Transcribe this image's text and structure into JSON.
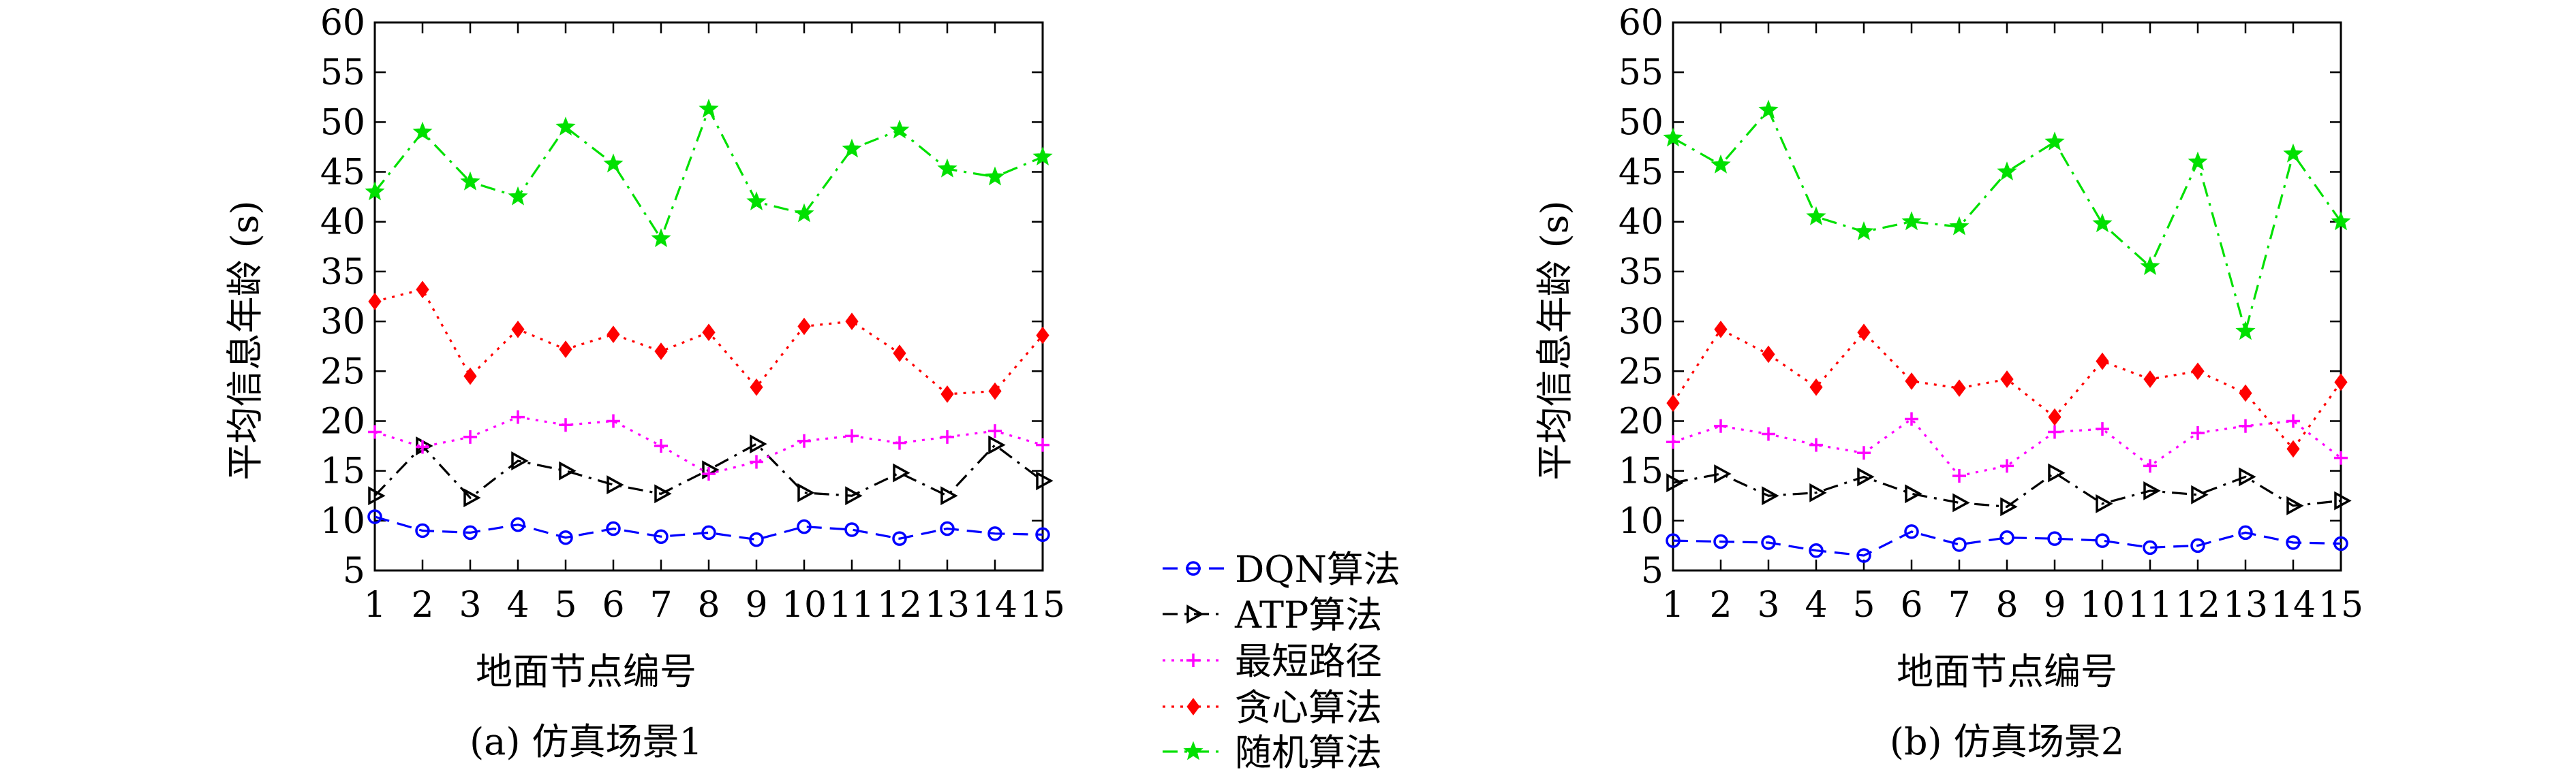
{
  "legend": {
    "placement": "center-between-charts",
    "items": [
      {
        "name": "DQN算法",
        "color": "#0000ff",
        "dash": "dashed",
        "marker": "circle"
      },
      {
        "name": "ATP算法",
        "color": "#000000",
        "dash": "dashdot",
        "marker": "triangle"
      },
      {
        "name": "最短路径",
        "color": "#ff00ff",
        "dash": "dotted",
        "marker": "plus"
      },
      {
        "name": "贪心算法",
        "color": "#ff0000",
        "dash": "dotted",
        "marker": "diamond"
      },
      {
        "name": "随机算法",
        "color": "#00e000",
        "dash": "dashdot",
        "marker": "star"
      }
    ]
  },
  "chart_data": [
    {
      "type": "line",
      "title": "",
      "caption": "(a) 仿真场景1",
      "xlabel": "地面节点编号",
      "ylabel": "平均信息年龄 (s)",
      "x": [
        1,
        2,
        3,
        4,
        5,
        6,
        7,
        8,
        9,
        10,
        11,
        12,
        13,
        14,
        15
      ],
      "xlim": [
        1,
        15
      ],
      "ylim": [
        5,
        60
      ],
      "yticks": [
        5,
        10,
        15,
        20,
        25,
        30,
        35,
        40,
        45,
        50,
        55,
        60
      ],
      "grid": false,
      "series": [
        {
          "name": "DQN算法",
          "values": [
            10.4,
            9.0,
            8.8,
            9.6,
            8.3,
            9.2,
            8.4,
            8.8,
            8.1,
            9.4,
            9.1,
            8.2,
            9.2,
            8.7,
            8.6
          ]
        },
        {
          "name": "ATP算法",
          "values": [
            12.5,
            17.5,
            12.3,
            16.0,
            15.0,
            13.6,
            12.7,
            15.1,
            17.7,
            12.8,
            12.5,
            14.8,
            12.5,
            17.6,
            14.0
          ]
        },
        {
          "name": "最短路径",
          "values": [
            18.9,
            17.4,
            18.4,
            20.4,
            19.6,
            20.0,
            17.5,
            14.7,
            15.9,
            18.0,
            18.5,
            17.8,
            18.4,
            19.0,
            17.6
          ]
        },
        {
          "name": "贪心算法",
          "values": [
            32.0,
            33.2,
            24.5,
            29.2,
            27.2,
            28.7,
            27.0,
            28.9,
            23.4,
            29.5,
            30.0,
            26.8,
            22.7,
            23.0,
            28.6
          ]
        },
        {
          "name": "随机算法",
          "values": [
            43.0,
            49.0,
            44.0,
            42.5,
            49.5,
            45.8,
            38.3,
            51.3,
            42.0,
            40.8,
            47.3,
            49.2,
            45.3,
            44.5,
            46.5
          ]
        }
      ]
    },
    {
      "type": "line",
      "title": "",
      "caption": "(b) 仿真场景2",
      "xlabel": "地面节点编号",
      "ylabel": "平均信息年龄 (s)",
      "x": [
        1,
        2,
        3,
        4,
        5,
        6,
        7,
        8,
        9,
        10,
        11,
        12,
        13,
        14,
        15
      ],
      "xlim": [
        1,
        15
      ],
      "ylim": [
        5,
        60
      ],
      "yticks": [
        5,
        10,
        15,
        20,
        25,
        30,
        35,
        40,
        45,
        50,
        55,
        60
      ],
      "grid": false,
      "series": [
        {
          "name": "DQN算法",
          "values": [
            8.0,
            7.9,
            7.8,
            7.0,
            6.5,
            8.9,
            7.6,
            8.3,
            8.2,
            8.0,
            7.3,
            7.5,
            8.8,
            7.8,
            7.7
          ]
        },
        {
          "name": "ATP算法",
          "values": [
            13.8,
            14.7,
            12.5,
            12.8,
            14.4,
            12.7,
            11.8,
            11.4,
            14.8,
            11.7,
            13.0,
            12.6,
            14.4,
            11.5,
            12.0
          ]
        },
        {
          "name": "最短路径",
          "values": [
            17.9,
            19.5,
            18.7,
            17.6,
            16.8,
            20.2,
            14.5,
            15.5,
            18.9,
            19.2,
            15.5,
            18.8,
            19.5,
            20.0,
            16.3
          ]
        },
        {
          "name": "贪心算法",
          "values": [
            21.8,
            29.2,
            26.7,
            23.4,
            28.9,
            24.0,
            23.3,
            24.2,
            20.4,
            26.0,
            24.2,
            25.0,
            22.8,
            17.2,
            23.9
          ]
        },
        {
          "name": "随机算法",
          "values": [
            48.4,
            45.7,
            51.2,
            40.5,
            39.0,
            40.0,
            39.5,
            45.0,
            48.0,
            39.8,
            35.5,
            46.0,
            29.0,
            46.8,
            40.0
          ]
        }
      ]
    }
  ]
}
